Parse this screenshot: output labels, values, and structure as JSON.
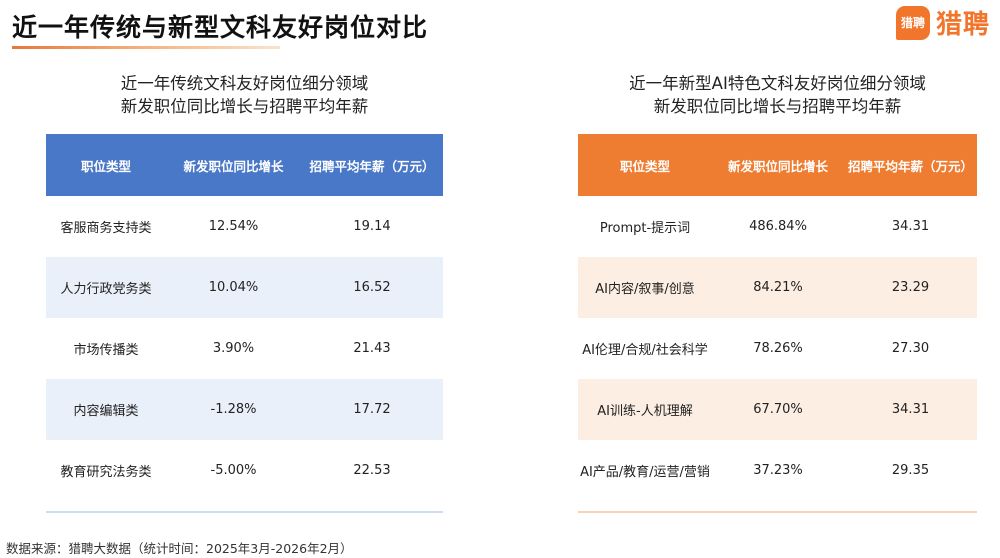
{
  "header": {
    "title": "近一年传统与新型文科友好岗位对比",
    "logo_badge": "猎聘",
    "logo_text": "猎聘"
  },
  "left_table": {
    "subtitle_line1": "近一年传统文科友好岗位细分领域",
    "subtitle_line2": "新发职位同比增长与招聘平均年薪",
    "headers": [
      "职位类型",
      "新发职位同比增长",
      "招聘平均年薪（万元）"
    ],
    "rows": [
      [
        "客服商务支持类",
        "12.54%",
        "19.14"
      ],
      [
        "人力行政党务类",
        "10.04%",
        "16.52"
      ],
      [
        "市场传播类",
        "3.90%",
        "21.43"
      ],
      [
        "内容编辑类",
        "-1.28%",
        "17.72"
      ],
      [
        "教育研究法务类",
        "-5.00%",
        "22.53"
      ]
    ]
  },
  "right_table": {
    "subtitle_line1": "近一年新型AI特色文科友好岗位细分领域",
    "subtitle_line2": "新发职位同比增长与招聘平均年薪",
    "headers": [
      "职位类型",
      "新发职位同比增长",
      "招聘平均年薪（万元）"
    ],
    "rows": [
      [
        "Prompt-提示词",
        "486.84%",
        "34.31"
      ],
      [
        "AI内容/叙事/创意",
        "84.21%",
        "23.29"
      ],
      [
        "AI伦理/合规/社会科学",
        "78.26%",
        "27.30"
      ],
      [
        "AI训练-人机理解",
        "67.70%",
        "34.31"
      ],
      [
        "AI产品/教育/运营/营销",
        "37.23%",
        "29.35"
      ]
    ]
  },
  "colors": {
    "left_header": "#4a78c8",
    "right_header": "#ee7d31",
    "brand": "#f2752c"
  },
  "footnote": "数据来源：猎聘大数据（统计时间：2025年3月-2026年2月）"
}
